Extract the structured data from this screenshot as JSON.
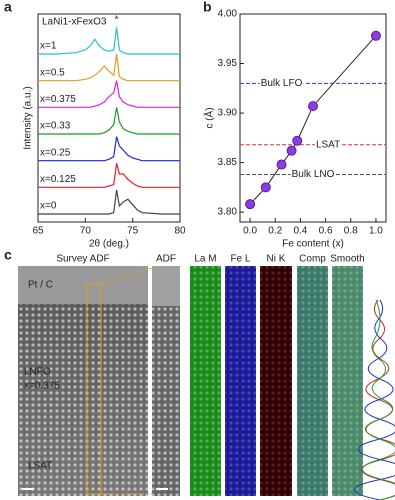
{
  "chart_data": [
    {
      "type": "line",
      "panel": "a",
      "title": "LaNi1-xFexO3",
      "xlabel": "2θ (deg.)",
      "ylabel": "Intensity (a.u.)",
      "annotation": "*",
      "xlim": [
        65,
        80
      ],
      "xticks": [
        65,
        70,
        75,
        80
      ],
      "ylim": [
        0,
        7.8
      ],
      "x": [
        65,
        67,
        69,
        70,
        70.5,
        71,
        71.5,
        72,
        72.5,
        73,
        73.3,
        73.6,
        74,
        74.5,
        75,
        75.5,
        76,
        78,
        80
      ],
      "series": [
        {
          "name": "x=1",
          "color": "#22c5d0",
          "values": [
            6.3,
            6.3,
            6.35,
            6.45,
            6.6,
            6.85,
            6.6,
            6.45,
            6.4,
            6.45,
            7.3,
            6.45,
            6.35,
            6.3,
            6.3,
            6.3,
            6.3,
            6.3,
            6.3
          ]
        },
        {
          "name": "x=0.5",
          "color": "#e0a020",
          "values": [
            5.3,
            5.3,
            5.3,
            5.35,
            5.4,
            5.5,
            5.65,
            5.85,
            5.65,
            5.5,
            6.3,
            5.45,
            5.35,
            5.3,
            5.3,
            5.3,
            5.3,
            5.3,
            5.3
          ]
        },
        {
          "name": "x=0.375",
          "color": "#e020e0",
          "values": [
            4.3,
            4.3,
            4.3,
            4.3,
            4.3,
            4.35,
            4.4,
            4.5,
            4.7,
            4.85,
            5.3,
            4.7,
            4.5,
            4.4,
            4.35,
            4.3,
            4.3,
            4.3,
            4.3
          ]
        },
        {
          "name": "x=0.33",
          "color": "#1a9a2a",
          "values": [
            3.3,
            3.3,
            3.3,
            3.3,
            3.3,
            3.3,
            3.3,
            3.35,
            3.45,
            3.65,
            4.3,
            3.75,
            3.5,
            3.4,
            3.35,
            3.3,
            3.3,
            3.3,
            3.3
          ]
        },
        {
          "name": "x=0.25",
          "color": "#1a2ad0",
          "values": [
            2.3,
            2.3,
            2.3,
            2.3,
            2.3,
            2.3,
            2.3,
            2.3,
            2.35,
            2.45,
            3.2,
            2.85,
            2.7,
            2.5,
            2.4,
            2.35,
            2.3,
            2.3,
            2.3
          ]
        },
        {
          "name": "x=0.125",
          "color": "#e02020",
          "values": [
            1.3,
            1.3,
            1.3,
            1.3,
            1.3,
            1.3,
            1.3,
            1.3,
            1.35,
            1.4,
            2.2,
            1.8,
            1.8,
            1.6,
            1.45,
            1.35,
            1.3,
            1.3,
            1.3
          ]
        },
        {
          "name": "x=0",
          "color": "#444444",
          "values": [
            0.3,
            0.3,
            0.3,
            0.3,
            0.3,
            0.3,
            0.3,
            0.3,
            0.3,
            0.35,
            1.2,
            0.6,
            0.75,
            0.85,
            0.65,
            0.45,
            0.35,
            0.3,
            0.3
          ]
        }
      ]
    },
    {
      "type": "scatter",
      "panel": "b",
      "xlabel": "Fe content (x)",
      "ylabel": "c (Å)",
      "xlim": [
        -0.08,
        1.08
      ],
      "ylim": [
        3.79,
        4.0
      ],
      "xticks": [
        {
          "value": 0,
          "label": "0.0"
        },
        {
          "value": 0.2,
          "label": "0.2"
        },
        {
          "value": 0.4,
          "label": "0.4"
        },
        {
          "value": 0.6,
          "label": "0.6"
        },
        {
          "value": 0.8,
          "label": "0.8"
        },
        {
          "value": 1,
          "label": "1.0"
        }
      ],
      "yticks": [
        {
          "value": 3.8,
          "label": "3.80"
        },
        {
          "value": 3.85,
          "label": "3.85"
        },
        {
          "value": 3.9,
          "label": "3.90"
        },
        {
          "value": 3.95,
          "label": "3.95"
        },
        {
          "value": 4.0,
          "label": "4.00"
        }
      ],
      "x": [
        0,
        0.125,
        0.25,
        0.33,
        0.375,
        0.5,
        1
      ],
      "values": [
        3.808,
        3.825,
        3.848,
        3.862,
        3.872,
        3.907,
        3.978
      ],
      "color": "#8a3ee0",
      "reference_lines": [
        {
          "name": "Bulk LFO",
          "value": 3.93,
          "color": "#2a3ad0"
        },
        {
          "name": "LSAT",
          "value": 3.868,
          "color": "#e03030"
        },
        {
          "name": "Bulk LNO",
          "value": 3.838,
          "color": "#555555"
        }
      ]
    }
  ],
  "images": {
    "panel": "c",
    "survey": "Survey ADF",
    "labels": [
      "Pt / C",
      "LNFO",
      "x=0.375",
      "LSAT"
    ],
    "columns": [
      "ADF",
      "La M",
      "Fe L",
      "Ni K",
      "Comp",
      "Smooth"
    ]
  }
}
